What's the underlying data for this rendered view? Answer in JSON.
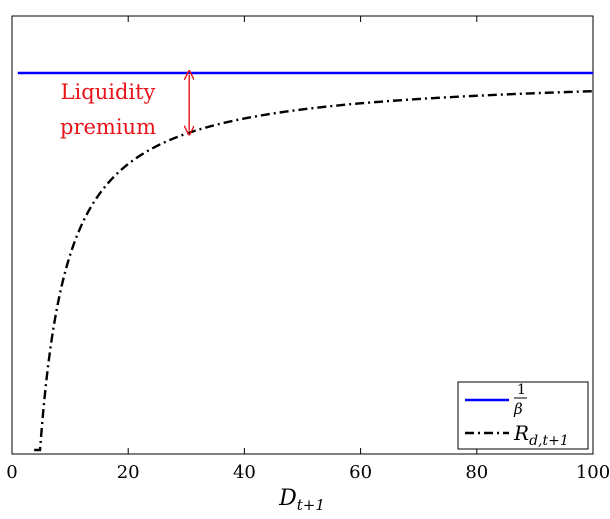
{
  "chart_data": {
    "type": "line",
    "xlabel": "D",
    "xlabel_sub": "t+1",
    "ylabel": "",
    "xlim": [
      0,
      100
    ],
    "ylim_visible": false,
    "x_ticks": [
      "0",
      "20",
      "40",
      "60",
      "80",
      "100"
    ],
    "y_ticks": [],
    "grid": false,
    "legend_placement": "bottom-right",
    "series": [
      {
        "name": "1/β",
        "legend_num": "1",
        "legend_den": "β",
        "color": "#0000ff",
        "style": "solid",
        "x": [
          1,
          100
        ],
        "y": [
          1.0,
          1.0
        ]
      },
      {
        "name": "R_{d,t+1}",
        "legend_main": "R",
        "legend_sub": "d,t+1",
        "color": "#000000",
        "style": "dash-dot",
        "formula": "y = 1 - 2.0 / x",
        "x_range": [
          3.8,
          100
        ],
        "y_at_x30": 0.933
      }
    ],
    "annotations": [
      {
        "text_line1": "Liquidity",
        "text_line2": "premium",
        "color": "#e8141a",
        "arrow_x": 30.5,
        "arrow_from": "R_{d,t+1}",
        "arrow_to": "1/β"
      }
    ]
  }
}
